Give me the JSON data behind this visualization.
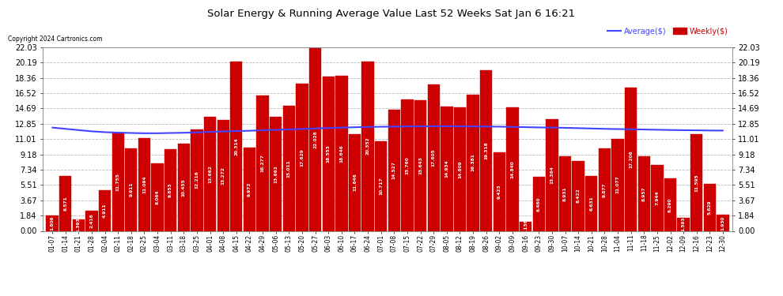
{
  "title": "Solar Energy & Running Average Value Last 52 Weeks Sat Jan 6 16:21",
  "copyright": "Copyright 2024 Cartronics.com",
  "legend_average": "Average($)",
  "legend_weekly": "Weekly($)",
  "bar_color": "#cc0000",
  "avg_line_color": "#4444ff",
  "background_color": "#ffffff",
  "grid_color": "#bbbbbb",
  "yticks": [
    0.0,
    1.84,
    3.67,
    5.51,
    7.34,
    9.18,
    11.01,
    12.85,
    14.69,
    16.52,
    18.36,
    20.19,
    22.03
  ],
  "categories": [
    "01-07",
    "01-14",
    "01-21",
    "01-28",
    "02-04",
    "02-11",
    "02-18",
    "02-25",
    "03-04",
    "03-11",
    "03-18",
    "03-25",
    "04-01",
    "04-08",
    "04-15",
    "04-22",
    "04-29",
    "05-06",
    "05-13",
    "05-20",
    "05-27",
    "06-03",
    "06-10",
    "06-17",
    "06-24",
    "07-01",
    "07-08",
    "07-15",
    "07-22",
    "07-29",
    "08-05",
    "08-12",
    "08-19",
    "08-26",
    "09-02",
    "09-09",
    "09-16",
    "09-23",
    "09-30",
    "10-07",
    "10-14",
    "10-21",
    "10-28",
    "11-04",
    "11-11",
    "11-18",
    "11-25",
    "12-02",
    "12-09",
    "12-16",
    "12-23",
    "12-30"
  ],
  "weekly_values": [
    1.806,
    6.571,
    1.393,
    2.416,
    4.911,
    11.755,
    9.911,
    11.094,
    8.064,
    9.853,
    10.455,
    12.216,
    13.662,
    13.272,
    20.314,
    9.972,
    16.277,
    13.662,
    15.011,
    17.629,
    22.028,
    18.553,
    18.646,
    11.646,
    20.352,
    10.717,
    14.527,
    15.76,
    15.643,
    17.605,
    14.934,
    14.809,
    16.381,
    19.318,
    9.423,
    14.84,
    1.136,
    6.46,
    13.364,
    8.931,
    8.422,
    6.631,
    9.877,
    11.077,
    17.206,
    8.957,
    7.944,
    6.29,
    1.593,
    11.595,
    5.629,
    1.93
  ],
  "avg_values": [
    12.4,
    12.25,
    12.1,
    11.95,
    11.85,
    11.8,
    11.75,
    11.72,
    11.72,
    11.75,
    11.78,
    11.82,
    11.88,
    11.93,
    11.98,
    12.02,
    12.08,
    12.13,
    12.18,
    12.23,
    12.3,
    12.35,
    12.4,
    12.44,
    12.48,
    12.5,
    12.52,
    12.54,
    12.55,
    12.56,
    12.56,
    12.55,
    12.54,
    12.53,
    12.51,
    12.48,
    12.45,
    12.42,
    12.4,
    12.37,
    12.33,
    12.29,
    12.25,
    12.22,
    12.2,
    12.17,
    12.14,
    12.11,
    12.09,
    12.07,
    12.05,
    12.04
  ]
}
